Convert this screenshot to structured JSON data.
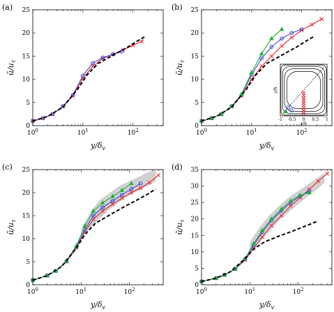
{
  "colors": {
    "red": "#e8232b",
    "blue": "#3c46d8",
    "green": "#1fae3a",
    "dns": "#000000",
    "band": "#c8c8c8"
  },
  "chart_data": [
    {
      "type": "line",
      "tag": "(a)",
      "xscale": "log",
      "xlim": [
        1,
        400
      ],
      "ylim": [
        0,
        25
      ],
      "xticklabels": [
        "10^0",
        "10^1",
        "10^2"
      ],
      "yticks": [
        0,
        5,
        10,
        15,
        20,
        25
      ],
      "xlabel": "y/δv",
      "ylabel": "ũ/uτ",
      "series": [
        {
          "color": "red",
          "marker": "x",
          "style": "solid",
          "x": [
            1,
            1.6,
            2.5,
            4,
            6.3,
            10,
            15.8,
            25,
            40,
            63,
            100,
            150
          ],
          "y": [
            1,
            1.6,
            2.5,
            4.1,
            6.4,
            10.2,
            12.8,
            14.5,
            15.4,
            16.3,
            17.3,
            18.2
          ]
        },
        {
          "color": "blue",
          "marker": "o",
          "style": "solid",
          "x": [
            1,
            1.6,
            2.5,
            4,
            6.3,
            10,
            15.8,
            25,
            40,
            60
          ],
          "y": [
            1,
            1.6,
            2.5,
            4.2,
            6.6,
            10.8,
            13.5,
            14.7,
            15.4,
            16
          ]
        },
        {
          "color": "dns",
          "marker": "none",
          "style": "dashed",
          "x": [
            1,
            2,
            4,
            8,
            12,
            20,
            40,
            80,
            120,
            180
          ],
          "y": [
            1,
            2,
            4,
            8,
            10.9,
            13.4,
            15.2,
            17,
            18.2,
            19.3
          ]
        }
      ]
    },
    {
      "type": "line",
      "tag": "(b)",
      "xscale": "log",
      "xlim": [
        1,
        400
      ],
      "ylim": [
        0,
        25
      ],
      "xticklabels": [
        "10^0",
        "10^1",
        "10^2"
      ],
      "yticks": [
        0,
        5,
        10,
        15,
        20,
        25
      ],
      "xlabel": "y/δv",
      "ylabel": "ũ/uτ",
      "series": [
        {
          "color": "red",
          "marker": "x",
          "style": "solid",
          "x": [
            1,
            1.6,
            2.5,
            4,
            6.3,
            10,
            15.8,
            25,
            40,
            63,
            100,
            160,
            250
          ],
          "y": [
            1,
            1.6,
            2.5,
            4.1,
            6.4,
            10,
            12.8,
            15,
            17.2,
            19,
            20.6,
            21.8,
            23
          ]
        },
        {
          "color": "blue",
          "marker": "o",
          "style": "solid",
          "x": [
            1,
            1.6,
            2.5,
            4,
            6.3,
            10,
            15.8,
            25,
            40,
            63,
            100
          ],
          "y": [
            1,
            1.6,
            2.5,
            4.2,
            6.6,
            11,
            14.5,
            17,
            18.8,
            20,
            20.8
          ]
        },
        {
          "color": "green",
          "marker": "triangle",
          "style": "solid",
          "x": [
            1,
            1.6,
            2.5,
            4,
            6.3,
            10,
            15.8,
            25,
            40
          ],
          "y": [
            1,
            1.6,
            2.5,
            4.2,
            6.8,
            11.5,
            15.5,
            18.8,
            20.8
          ]
        },
        {
          "color": "dns",
          "marker": "none",
          "style": "dashed",
          "x": [
            1,
            2,
            4,
            8,
            12,
            20,
            40,
            80,
            120,
            180
          ],
          "y": [
            1,
            2,
            4,
            8,
            10.9,
            13.4,
            15.2,
            17,
            18.2,
            19.3
          ]
        }
      ],
      "inset": {
        "xlabel": "z/h",
        "ylabel": "y/h",
        "xticklabels": [
          "-1",
          "-0.5",
          "0",
          "0.5",
          "1"
        ]
      }
    },
    {
      "type": "line",
      "tag": "(c)",
      "xscale": "log",
      "xlim": [
        1,
        500
      ],
      "ylim": [
        0,
        25
      ],
      "xticklabels": [
        "10^0",
        "10^1",
        "10^2"
      ],
      "yticks": [
        0,
        5,
        10,
        15,
        20,
        25
      ],
      "xlabel": "y/δv",
      "ylabel": "ũ/uτ",
      "band": {
        "x": [
          10,
          16,
          25,
          40,
          63,
          100,
          160,
          250,
          350
        ],
        "lower": [
          10.5,
          12.5,
          14.5,
          16.5,
          18,
          19.5,
          20.5,
          21.5,
          22.5
        ],
        "upper": [
          12,
          16,
          18.5,
          20,
          21.5,
          22.5,
          23.5,
          24.5,
          25
        ]
      },
      "series": [
        {
          "color": "red",
          "marker": "x",
          "style": "solid",
          "x": [
            1,
            2,
            3,
            5,
            8,
            12,
            18,
            28,
            45,
            70,
            110,
            170,
            260,
            400
          ],
          "y": [
            1,
            2,
            3,
            5,
            8,
            11.5,
            14.2,
            16,
            17.5,
            18.8,
            20,
            21,
            22.2,
            23.8
          ]
        },
        {
          "color": "blue",
          "marker": "o",
          "style": "solid",
          "x": [
            1,
            2,
            3,
            5,
            8,
            12,
            18,
            28,
            45,
            70,
            110,
            170
          ],
          "y": [
            1,
            2,
            3,
            5.1,
            8.2,
            12,
            15,
            16.8,
            18.2,
            19.5,
            20.8,
            22
          ]
        },
        {
          "color": "green",
          "marker": "triangle",
          "style": "solid",
          "x": [
            1,
            2,
            3,
            5,
            8,
            12,
            18,
            28,
            45,
            70,
            110
          ],
          "y": [
            1,
            2,
            3,
            5.2,
            8.5,
            12.8,
            16,
            17.8,
            19.2,
            20.5,
            22
          ]
        },
        {
          "color": "dns",
          "marker": "none",
          "style": "dashed",
          "x": [
            1,
            2,
            4,
            8,
            12,
            20,
            40,
            80,
            150,
            250,
            350
          ],
          "y": [
            1,
            2,
            4,
            8,
            10.9,
            13.4,
            15.2,
            17,
            18.5,
            19.8,
            20.8
          ]
        }
      ]
    },
    {
      "type": "line",
      "tag": "(d)",
      "xscale": "log",
      "xlim": [
        1,
        500
      ],
      "ylim": [
        0,
        35
      ],
      "xticklabels": [
        "10^0",
        "10^1",
        "10^2"
      ],
      "yticks": [
        0,
        5,
        10,
        15,
        20,
        25,
        30,
        35
      ],
      "xlabel": "y/δv",
      "ylabel": "ũ/uτ",
      "band": {
        "x": [
          10,
          16,
          25,
          40,
          63,
          100,
          160,
          250,
          350
        ],
        "lower": [
          10,
          13,
          16,
          19.5,
          22,
          24.5,
          27,
          29,
          31
        ],
        "upper": [
          13,
          17.5,
          21,
          24,
          26.5,
          28.5,
          30.5,
          32.5,
          34
        ]
      },
      "series": [
        {
          "color": "red",
          "marker": "x",
          "style": "solid",
          "x": [
            1,
            2,
            3,
            5,
            8,
            12,
            18,
            28,
            45,
            70,
            110,
            170,
            260,
            400
          ],
          "y": [
            1,
            2,
            3,
            4.8,
            7.5,
            11,
            14.5,
            18,
            21,
            24,
            26.5,
            29,
            31.5,
            33.8
          ]
        },
        {
          "color": "blue",
          "marker": "o",
          "style": "solid",
          "x": [
            1,
            2,
            3,
            5,
            8,
            12,
            18,
            28,
            45,
            70,
            110,
            170
          ],
          "y": [
            1,
            2,
            3,
            4.8,
            7.8,
            12,
            16,
            19.5,
            22.5,
            25,
            27,
            28.5
          ]
        },
        {
          "color": "green",
          "marker": "triangle",
          "style": "solid",
          "x": [
            1,
            2,
            3,
            5,
            8,
            12,
            18,
            28,
            45,
            70,
            110,
            170
          ],
          "y": [
            1,
            2,
            3,
            4.9,
            8,
            12.5,
            16.5,
            20,
            23,
            25.5,
            27.2,
            28
          ]
        },
        {
          "color": "dns",
          "marker": "none",
          "style": "dashed",
          "x": [
            1,
            2,
            4,
            8,
            12,
            20,
            40,
            80,
            150,
            250
          ],
          "y": [
            1,
            2,
            4,
            8,
            10.9,
            13,
            14.8,
            16.4,
            18,
            19.3
          ]
        }
      ]
    }
  ]
}
